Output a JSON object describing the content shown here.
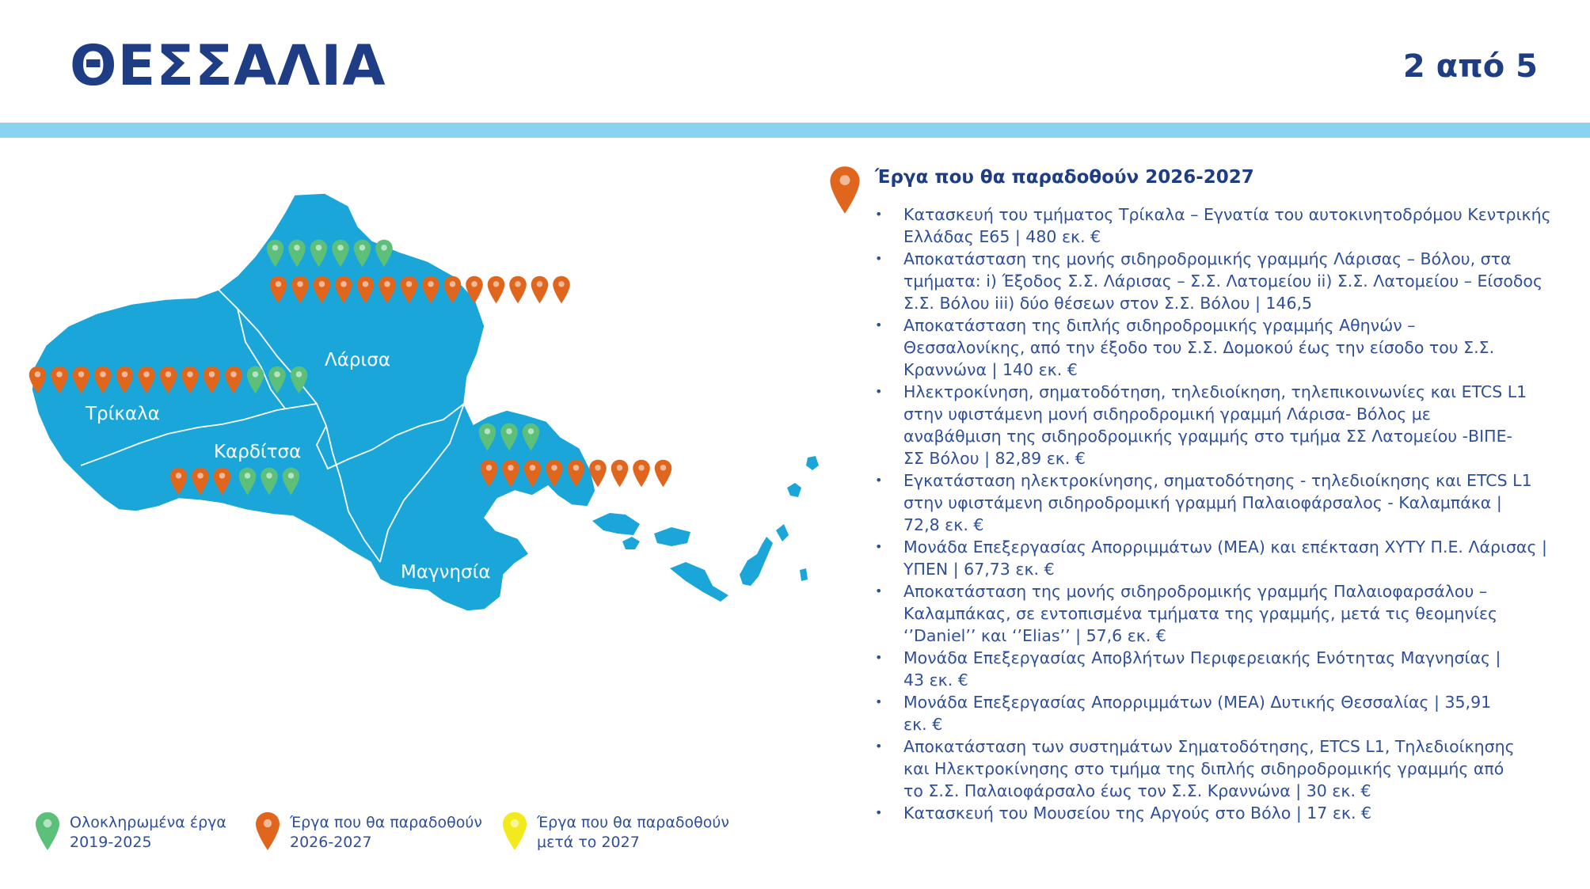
{
  "header": {
    "title": "ΘΕΣΣΑΛΙΑ",
    "page_indicator": "2 από 5"
  },
  "colors": {
    "title": "#1f3d84",
    "band": "#87d3f1",
    "map_fill": "#1aa6d8",
    "pin_completed": "#5cc07a",
    "pin_2026_2027": "#e0651d",
    "pin_after_2027": "#f2ea1c",
    "text": "#2e4f9a"
  },
  "map": {
    "regions": [
      {
        "name": "Λάρισα",
        "completed": 6,
        "planned_2026_2027": 14
      },
      {
        "name": "Τρίκαλα",
        "completed": 3,
        "planned_2026_2027": 10
      },
      {
        "name": "Καρδίτσα",
        "completed": 3,
        "planned_2026_2027": 3
      },
      {
        "name": "Μαγνησία",
        "completed": 3,
        "planned_2026_2027": 9
      }
    ]
  },
  "panel": {
    "icon": "orange-location-pin",
    "title": "Έργα που θα παραδοθούν 2026-2027",
    "items": [
      [
        "Κατασκευή του τμήματος Τρίκαλα – Εγνατία του αυτοκινητοδρόμου Κεντρικής",
        "Ελλάδας Ε65 | 480 εκ. €"
      ],
      [
        "Αποκατάσταση της μονής σιδηροδρομικής γραμμής Λάρισας – Βόλου, στα",
        "τμήματα: i) Έξοδος Σ.Σ. Λάρισας – Σ.Σ. Λατομείου ii) Σ.Σ. Λατομείου – Είσοδος",
        "Σ.Σ. Βόλου iii) δύο θέσεων στον Σ.Σ. Βόλου | 146,5"
      ],
      [
        "Αποκατάσταση της διπλής σιδηροδρομικής γραμμής Αθηνών –",
        "Θεσσαλονίκης, από την έξοδο του Σ.Σ. Δομοκού έως την είσοδο του Σ.Σ.",
        "Κραννώνα | 140 εκ. €"
      ],
      [
        "Ηλεκτροκίνηση, σηματοδότηση, τηλεδιοίκηση, τηλεπικοινωνίες και ETCS L1",
        "στην υφιστάμενη μονή σιδηροδρομική γραμμή Λάρισα- Βόλος με",
        "αναβάθμιση της σιδηροδρομικής γραμμής στο τμήμα ΣΣ Λατομείου -ΒΙΠΕ-",
        "ΣΣ Βόλου | 82,89 εκ. €"
      ],
      [
        "Εγκατάσταση ηλεκτροκίνησης, σηματοδότησης - τηλεδιοίκησης και ETCS L1",
        "στην υφιστάμενη σιδηροδρομική γραμμή Παλαιοφάρσαλος - Καλαμπάκα |",
        "72,8 εκ. €"
      ],
      [
        "Μονάδα Επεξεργασίας Απορριμμάτων (ΜΕΑ) και επέκταση ΧΥΤΥ Π.Ε. Λάρισας |",
        "ΥΠΕΝ | 67,73 εκ. €"
      ],
      [
        "Αποκατάσταση της μονής σιδηροδρομικής γραμμής Παλαιοφαρσάλου –",
        "Καλαμπάκας, σε εντοπισμένα τμήματα της γραμμής, μετά τις θεομηνίες",
        "‘’Daniel’’ και ‘’Elias’’ | 57,6 εκ. €"
      ],
      [
        "Μονάδα Επεξεργασίας Αποβλήτων Περιφερειακής Ενότητας Μαγνησίας |",
        "43 εκ. €"
      ],
      [
        "Μονάδα Επεξεργασίας Απορριμμάτων (ΜΕΑ) Δυτικής Θεσσαλίας | 35,91",
        "εκ. €"
      ],
      [
        "Αποκατάσταση των συστημάτων Σηματοδότησης, ETCS L1, Τηλεδιοίκησης",
        "και Ηλεκτροκίνησης στο τμήμα της διπλής σιδηροδρομικής γραμμής από",
        "το Σ.Σ. Παλαιοφάρσαλο έως τον Σ.Σ. Κραννώνα | 30 εκ. €"
      ],
      [
        "Κατασκευή του Μουσείου της Αργούς στο Βόλο | 17 εκ. €"
      ]
    ]
  },
  "legend": [
    {
      "icon": "green-location-pin",
      "lines": [
        "Ολοκληρωμένα έργα",
        "2019-2025"
      ]
    },
    {
      "icon": "orange-location-pin",
      "lines": [
        "Έργα που θα παραδοθούν",
        "2026-2027"
      ]
    },
    {
      "icon": "yellow-location-pin",
      "lines": [
        "Έργα που θα παραδοθούν",
        "μετά το 2027"
      ]
    }
  ]
}
